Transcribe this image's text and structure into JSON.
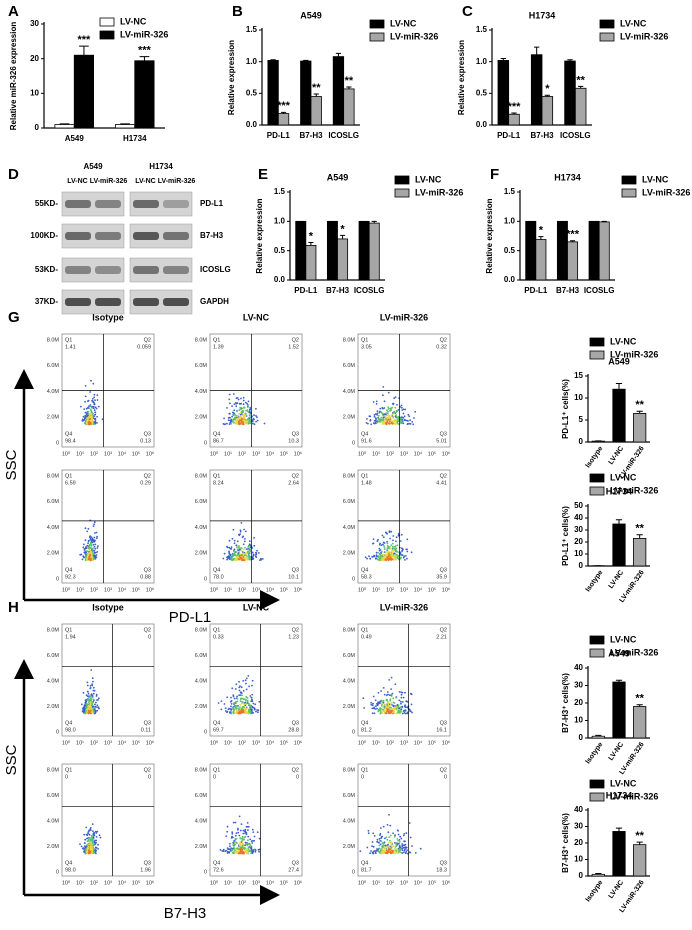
{
  "chart_data": [
    {
      "type": "bar",
      "panel": "A",
      "ylabel": "Relative miR-326 expression",
      "categories": [
        "A549",
        "H1734"
      ],
      "ylim": [
        0,
        30
      ],
      "yticks": [
        0,
        10,
        20,
        30
      ],
      "series": [
        {
          "name": "LV-NC",
          "color": "#ffffff",
          "values": [
            1,
            1
          ],
          "errors": [
            0.2,
            0.2
          ]
        },
        {
          "name": "LV-miR-326",
          "color": "#000000",
          "values": [
            21,
            19.4
          ],
          "errors": [
            2.6,
            1.2
          ],
          "annotations": [
            "***",
            "***"
          ]
        }
      ]
    },
    {
      "type": "bar",
      "panel": "B",
      "title": "A549",
      "ylabel": "Relative expression",
      "categories": [
        "PD-L1",
        "B7-H3",
        "ICOSLG"
      ],
      "ylim": [
        0,
        1.5
      ],
      "yticks": [
        {
          "value": 0,
          "label": "0.0"
        },
        0.5,
        {
          "value": 1,
          "label": "1.0"
        },
        1.5
      ],
      "series": [
        {
          "name": "LV-NC",
          "color": "#000000",
          "values": [
            1.02,
            1.01,
            1.08
          ],
          "errors": [
            0.01,
            0.01,
            0.05
          ]
        },
        {
          "name": "LV-miR-326",
          "color": "#a6a6a6",
          "values": [
            0.18,
            0.45,
            0.57
          ],
          "errors": [
            0.02,
            0.04,
            0.03
          ],
          "annotations": [
            "***",
            "**",
            "**"
          ]
        }
      ]
    },
    {
      "type": "bar",
      "panel": "C",
      "title": "H1734",
      "ylabel": "Relative expression",
      "categories": [
        "PD-L1",
        "B7-H3",
        "ICOSLG"
      ],
      "ylim": [
        0,
        1.5
      ],
      "yticks": [
        {
          "value": 0,
          "label": "0.0"
        },
        0.5,
        {
          "value": 1,
          "label": "1.0"
        },
        1.5
      ],
      "series": [
        {
          "name": "LV-NC",
          "color": "#000000",
          "values": [
            1.02,
            1.11,
            1.01
          ],
          "errors": [
            0.03,
            0.12,
            0.02
          ]
        },
        {
          "name": "LV-miR-326",
          "color": "#a6a6a6",
          "values": [
            0.17,
            0.45,
            0.58
          ],
          "errors": [
            0.02,
            0.02,
            0.03
          ],
          "annotations": [
            "***",
            "*",
            "**"
          ]
        }
      ]
    },
    {
      "type": "bar",
      "panel": "E",
      "title": "A549",
      "ylabel": "Relative expression",
      "categories": [
        "PD-L1",
        "B7-H3",
        "ICOSLG"
      ],
      "ylim": [
        0,
        1.5
      ],
      "yticks": [
        {
          "value": 0,
          "label": "0.0"
        },
        0.5,
        {
          "value": 1,
          "label": "1.0"
        },
        1.5
      ],
      "series": [
        {
          "name": "LV-NC",
          "color": "#000000",
          "values": [
            1,
            1,
            1
          ]
        },
        {
          "name": "LV-miR-326",
          "color": "#a6a6a6",
          "values": [
            0.59,
            0.7,
            0.97
          ],
          "errors": [
            0.05,
            0.06,
            0.03
          ],
          "annotations": [
            "*",
            "*",
            null
          ]
        }
      ]
    },
    {
      "type": "bar",
      "panel": "F",
      "title": "H1734",
      "ylabel": "Relative expression",
      "categories": [
        "PD-L1",
        "B7-H3",
        "ICOSLG"
      ],
      "ylim": [
        0,
        1.5
      ],
      "yticks": [
        {
          "value": 0,
          "label": "0.0"
        },
        0.5,
        {
          "value": 1,
          "label": "1.0"
        },
        1.5
      ],
      "series": [
        {
          "name": "LV-NC",
          "color": "#000000",
          "values": [
            1,
            1,
            1
          ]
        },
        {
          "name": "LV-miR-326",
          "color": "#a6a6a6",
          "values": [
            0.69,
            0.65,
            0.99
          ],
          "errors": [
            0.05,
            0.02,
            0.01
          ],
          "annotations": [
            "*",
            "***",
            null
          ]
        }
      ]
    },
    {
      "type": "bar",
      "title": "A549",
      "ylabel": "PD-L1⁺ cells(%)",
      "categories": [
        "Isotype",
        "LV-NC",
        "LV-miR-326"
      ],
      "values": [
        0.2,
        12,
        6.5
      ],
      "errors": [
        0.05,
        1.3,
        0.5
      ],
      "colors": [
        "#ffffff",
        "#000000",
        "#a6a6a6"
      ],
      "annotations": [
        null,
        null,
        "**"
      ],
      "ylim": [
        0,
        15
      ],
      "yticks": [
        0,
        5,
        10,
        15
      ],
      "legend": [
        {
          "name": "LV-NC",
          "color": "#000000"
        },
        {
          "name": "LV-miR-326",
          "color": "#a6a6a6"
        }
      ]
    },
    {
      "type": "bar",
      "title": "H1734",
      "ylabel": "PD-L1⁺ cells(%)",
      "categories": [
        "Isotype",
        "LV-NC",
        "LV-miR-326"
      ],
      "values": [
        0.2,
        35,
        23
      ],
      "errors": [
        0.05,
        3.5,
        3
      ],
      "colors": [
        "#ffffff",
        "#000000",
        "#a6a6a6"
      ],
      "annotations": [
        null,
        null,
        "**"
      ],
      "ylim": [
        0,
        50
      ],
      "yticks": [
        0,
        10,
        20,
        30,
        40,
        50
      ],
      "legend": [
        {
          "name": "LV-NC",
          "color": "#000000"
        },
        {
          "name": "LV-miR-326",
          "color": "#a6a6a6"
        }
      ]
    },
    {
      "type": "bar",
      "title": "A549",
      "ylabel": "B7-H3⁺ cells(%)",
      "categories": [
        "Isotype",
        "LV-NC",
        "LV-miR-326"
      ],
      "values": [
        1,
        32,
        18
      ],
      "errors": [
        0.5,
        1,
        1
      ],
      "colors": [
        "#ffffff",
        "#000000",
        "#a6a6a6"
      ],
      "annotations": [
        null,
        null,
        "**"
      ],
      "ylim": [
        0,
        40
      ],
      "yticks": [
        0,
        10,
        20,
        30,
        40
      ],
      "legend": [
        {
          "name": "LV-NC",
          "color": "#000000"
        },
        {
          "name": "LV-miR-326",
          "color": "#a6a6a6"
        }
      ]
    },
    {
      "type": "bar",
      "title": "H1734",
      "ylabel": "B7-H3⁺ cells(%)",
      "categories": [
        "Isotype",
        "LV-NC",
        "LV-miR-326"
      ],
      "values": [
        1,
        27,
        19
      ],
      "errors": [
        0.5,
        2,
        1.5
      ],
      "colors": [
        "#ffffff",
        "#000000",
        "#a6a6a6"
      ],
      "annotations": [
        null,
        null,
        "**"
      ],
      "ylim": [
        0,
        40
      ],
      "yticks": [
        0,
        10,
        20,
        30,
        40
      ],
      "legend": [
        {
          "name": "LV-NC",
          "color": "#000000"
        },
        {
          "name": "LV-miR-326",
          "color": "#a6a6a6"
        }
      ]
    }
  ],
  "blot": {
    "panel": "D",
    "cell_lines": [
      "A549",
      "H1734"
    ],
    "lanes": [
      "LV-NC",
      "LV-miR-326"
    ],
    "markers": [
      "55KD-",
      "100KD-",
      "53KD-",
      "37KD-"
    ],
    "proteins": [
      "PD-L1",
      "B7-H3",
      "ICOSLG",
      "GAPDH"
    ]
  },
  "flow": [
    {
      "panel": "G",
      "columns": [
        "Isotype",
        "LV-NC",
        "LV-miR-326"
      ],
      "y_axis": "SSC",
      "x_axis": "PD-L1",
      "quadrants": [
        "Q1",
        "Q2",
        "Q3",
        "Q4"
      ],
      "yticks": [
        "8.0M",
        "6.0M",
        "4.0M",
        "2.0M",
        "0"
      ],
      "xticks": [
        "10⁰",
        "10¹",
        "10²",
        "10³",
        "10⁴",
        "10⁵",
        "10⁶"
      ],
      "plots": [
        [
          [
            "1.41",
            "0.059",
            "0.13",
            "98.4"
          ],
          [
            "1.39",
            "1.52",
            "10.3",
            "86.7"
          ],
          [
            "3.05",
            "0.32",
            "5.01",
            "91.6"
          ]
        ],
        [
          [
            "6.59",
            "0.29",
            "0.88",
            "92.3"
          ],
          [
            "8.24",
            "2.64",
            "10.1",
            "78.0"
          ],
          [
            "1.48",
            "4.41",
            "35.9",
            "58.3"
          ]
        ]
      ]
    },
    {
      "panel": "H",
      "columns": [
        "Isotype",
        "LV-NC",
        "LV-miR-326"
      ],
      "y_axis": "SSC",
      "x_axis": "B7-H3",
      "quadrants": [
        "Q1",
        "Q2",
        "Q3",
        "Q4"
      ],
      "yticks": [
        "8.0M",
        "6.0M",
        "4.0M",
        "2.0M",
        "0"
      ],
      "xticks": [
        "10⁰",
        "10¹",
        "10²",
        "10³",
        "10⁴",
        "10⁵",
        "10⁶"
      ],
      "plots": [
        [
          [
            "1.94",
            "0",
            "0.11",
            "98.0"
          ],
          [
            "0.33",
            "1.23",
            "28.8",
            "69.7"
          ],
          [
            "0.49",
            "2.21",
            "16.1",
            "81.2"
          ]
        ],
        [
          [
            "0",
            "0",
            "1.96",
            "98.0"
          ],
          [
            "0",
            "0",
            "27.4",
            "72.6"
          ],
          [
            "0",
            "0",
            "18.3",
            "81.7"
          ]
        ]
      ]
    }
  ]
}
